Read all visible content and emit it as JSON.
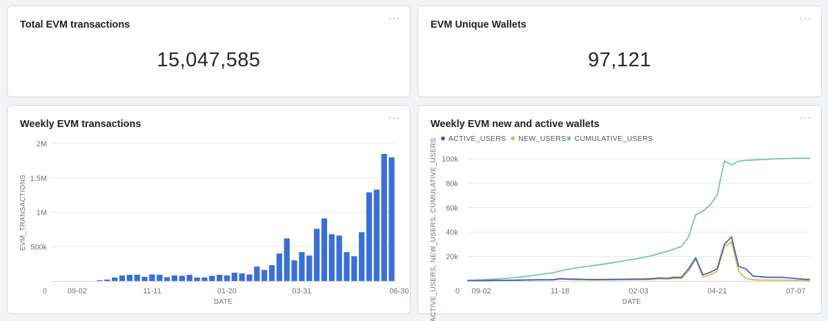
{
  "cards": {
    "total_tx": {
      "title": "Total EVM transactions",
      "value": "15,047,585",
      "menu": "···"
    },
    "unique_wallets": {
      "title": "EVM Unique Wallets",
      "value": "97,121",
      "menu": "···"
    },
    "weekly_tx": {
      "title": "Weekly EVM transactions",
      "menu": "···"
    },
    "weekly_wallets": {
      "title": "Weekly EVM new and active wallets",
      "menu": "···"
    }
  },
  "colors": {
    "bar": "#3a6fd8",
    "active_users": "#3b62c9",
    "new_users": "#e6b744",
    "cumulative_users": "#72c7a1",
    "grid": "#e5e7eb"
  },
  "chart_data": [
    {
      "type": "bar",
      "title": "Weekly EVM transactions",
      "xlabel": "DATE",
      "ylabel": "EVM_TRANSACTIONS",
      "ylim": [
        0,
        2000000
      ],
      "yticks": [
        0,
        500000,
        1000000,
        1500000,
        2000000
      ],
      "ytick_labels": [
        "0",
        "500k",
        "1M",
        "1.5M",
        "2M"
      ],
      "xtick_labels": [
        {
          "label": "09-02",
          "index": 3
        },
        {
          "label": "11-11",
          "index": 13
        },
        {
          "label": "01-20",
          "index": 23
        },
        {
          "label": "03-31",
          "index": 33
        },
        {
          "label": "06-30",
          "index": 46
        }
      ],
      "grid": true,
      "legend": "none",
      "values": [
        0,
        0,
        0,
        0,
        0,
        0,
        10000,
        20000,
        50000,
        80000,
        90000,
        90000,
        60000,
        95000,
        90000,
        55000,
        80000,
        75000,
        90000,
        50000,
        50000,
        75000,
        90000,
        80000,
        120000,
        110000,
        95000,
        210000,
        160000,
        230000,
        400000,
        620000,
        300000,
        420000,
        370000,
        760000,
        910000,
        680000,
        660000,
        420000,
        360000,
        710000,
        1290000,
        1330000,
        1850000,
        1800000
      ]
    },
    {
      "type": "line",
      "title": "Weekly EVM new and active wallets",
      "xlabel": "DATE",
      "ylabel": "ACTIVE_USERS, NEW_USERS, CUMULATIVE_USERS",
      "ylim": [
        0,
        100000
      ],
      "yticks": [
        0,
        20000,
        40000,
        60000,
        80000,
        100000
      ],
      "ytick_labels": [
        "0",
        "20k",
        "40k",
        "60k",
        "80k",
        "100k"
      ],
      "xtick_labels": [
        {
          "label": "09-02",
          "index": 2
        },
        {
          "label": "11-18",
          "index": 13
        },
        {
          "label": "02-03",
          "index": 24
        },
        {
          "label": "04-21",
          "index": 35
        },
        {
          "label": "07-07",
          "index": 46
        }
      ],
      "grid": true,
      "legend": "top-left",
      "series": [
        {
          "name": "ACTIVE_USERS",
          "values": [
            400,
            400,
            400,
            400,
            500,
            500,
            600,
            700,
            800,
            900,
            1000,
            1000,
            1000,
            2000,
            1600,
            1500,
            1400,
            1200,
            1200,
            1200,
            1300,
            1300,
            1400,
            1500,
            1500,
            1600,
            2000,
            2500,
            2200,
            3000,
            3000,
            10000,
            19000,
            5000,
            7000,
            10000,
            30000,
            36000,
            12000,
            10000,
            4000,
            3500,
            3000,
            3000,
            3000,
            2500,
            2000,
            1500,
            1000
          ]
        },
        {
          "name": "NEW_USERS",
          "values": [
            300,
            300,
            300,
            300,
            400,
            400,
            500,
            500,
            600,
            700,
            800,
            800,
            800,
            1500,
            1200,
            1000,
            900,
            800,
            800,
            800,
            900,
            900,
            1000,
            1000,
            1000,
            1100,
            1300,
            1800,
            1500,
            2000,
            2000,
            8000,
            18000,
            3000,
            5000,
            8000,
            28000,
            32000,
            8000,
            2000,
            1000,
            800,
            700,
            700,
            700,
            600,
            500,
            400,
            300
          ]
        },
        {
          "name": "CUMULATIVE_USERS",
          "values": [
            300,
            600,
            900,
            1200,
            1600,
            2000,
            2500,
            3000,
            3600,
            4300,
            5100,
            5900,
            6700,
            8200,
            9400,
            10400,
            11300,
            12100,
            12900,
            13700,
            14600,
            15500,
            16500,
            17500,
            18500,
            19600,
            20900,
            22700,
            24200,
            26200,
            28200,
            36200,
            54200,
            57200,
            62200,
            70200,
            98200,
            95000,
            98000,
            98700,
            99000,
            99300,
            99500,
            100000,
            100000,
            100200,
            100400,
            100500,
            100400
          ]
        }
      ]
    }
  ]
}
